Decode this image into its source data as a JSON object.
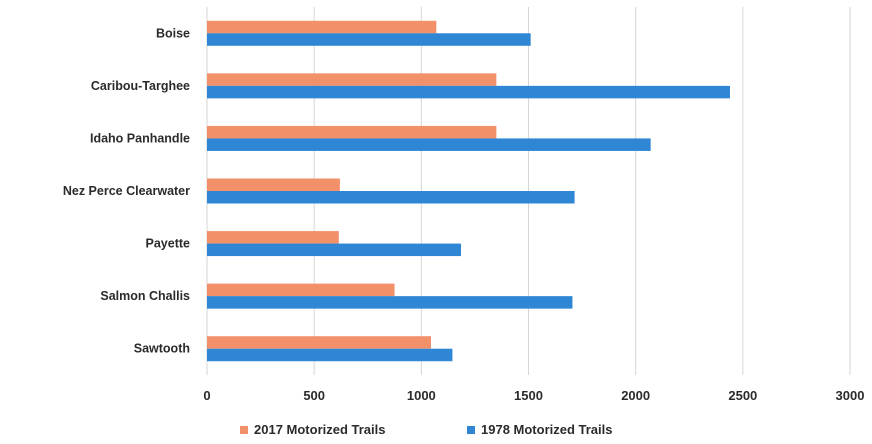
{
  "chart_data": {
    "type": "bar",
    "orientation": "horizontal",
    "title": "",
    "xlabel": "",
    "ylabel": "",
    "categories": [
      "Boise",
      "Caribou-Targhee",
      "Idaho Panhandle",
      "Nez Perce Clearwater",
      "Payette",
      "Salmon Challis",
      "Sawtooth"
    ],
    "series": [
      {
        "name": "2017 Motorized Trails",
        "color": "#f2906a",
        "values": [
          1070,
          1350,
          1350,
          620,
          615,
          875,
          1045
        ]
      },
      {
        "name": "1978 Motorized Trails",
        "color": "#2e86d4",
        "values": [
          1510,
          2440,
          2070,
          1715,
          1185,
          1705,
          1145
        ]
      }
    ],
    "xlim": [
      0,
      3000
    ],
    "xticks": [
      "0",
      "500",
      "1000",
      "1500",
      "2000",
      "2500",
      "3000"
    ],
    "grid": true,
    "legend_position": "bottom"
  }
}
